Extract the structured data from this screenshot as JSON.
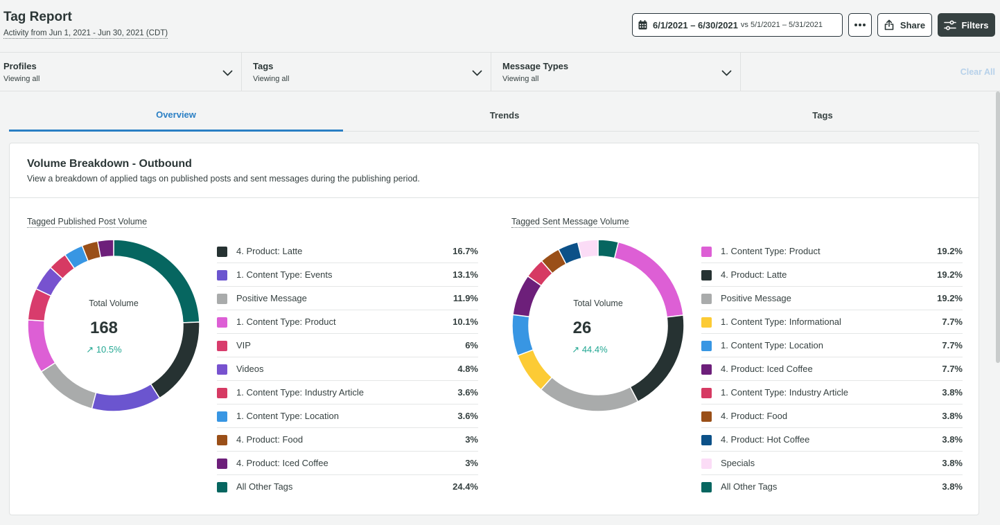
{
  "header": {
    "title": "Tag Report",
    "subtitle": "Activity from Jun 1, 2021 - Jun 30, 2021 (CDT)",
    "date_range": "6/1/2021 – 6/30/2021",
    "compare_range": "vs 5/1/2021 – 5/31/2021",
    "share_label": "Share",
    "filters_label": "Filters"
  },
  "filters": [
    {
      "label": "Profiles",
      "value": "Viewing all"
    },
    {
      "label": "Tags",
      "value": "Viewing all"
    },
    {
      "label": "Message Types",
      "value": "Viewing all"
    }
  ],
  "clear_all": "Clear All",
  "tabs": [
    {
      "label": "Overview",
      "active": true
    },
    {
      "label": "Trends",
      "active": false
    },
    {
      "label": "Tags",
      "active": false
    }
  ],
  "card": {
    "title": "Volume Breakdown - Outbound",
    "description": "View a breakdown of applied tags on published posts and sent messages during the publishing period."
  },
  "chart_data": [
    {
      "type": "pie",
      "title": "Tagged Published Post Volume",
      "center_label": "Total Volume",
      "total": "168",
      "change": "10.5%",
      "slices": [
        {
          "label": "4. Product: Latte",
          "value": 16.7,
          "display": "16.7%",
          "color": "#263232"
        },
        {
          "label": "1. Content Type: Events",
          "value": 13.1,
          "display": "13.1%",
          "color": "#6b55cf"
        },
        {
          "label": "Positive Message",
          "value": 11.9,
          "display": "11.9%",
          "color": "#a9abab"
        },
        {
          "label": "1. Content Type: Product",
          "value": 10.1,
          "display": "10.1%",
          "color": "#dd5fd5"
        },
        {
          "label": "VIP",
          "value": 6,
          "display": "6%",
          "color": "#d83c6c"
        },
        {
          "label": "Videos",
          "value": 4.8,
          "display": "4.8%",
          "color": "#7752cf"
        },
        {
          "label": "1. Content Type: Industry Article",
          "value": 3.6,
          "display": "3.6%",
          "color": "#d63a63"
        },
        {
          "label": "1. Content Type: Location",
          "value": 3.6,
          "display": "3.6%",
          "color": "#3896e3"
        },
        {
          "label": "4. Product: Food",
          "value": 3,
          "display": "3%",
          "color": "#9a4f18"
        },
        {
          "label": "4. Product: Iced Coffee",
          "value": 3,
          "display": "3%",
          "color": "#6d1f7a"
        },
        {
          "label": "All Other Tags",
          "value": 24.4,
          "display": "24.4%",
          "color": "#066660"
        }
      ]
    },
    {
      "type": "pie",
      "title": "Tagged Sent Message Volume",
      "center_label": "Total Volume",
      "total": "26",
      "change": "44.4%",
      "slices": [
        {
          "label": "1. Content Type: Product",
          "value": 19.2,
          "display": "19.2%",
          "color": "#dd5fd5"
        },
        {
          "label": "4. Product: Latte",
          "value": 19.2,
          "display": "19.2%",
          "color": "#263232"
        },
        {
          "label": "Positive Message",
          "value": 19.2,
          "display": "19.2%",
          "color": "#a9abab"
        },
        {
          "label": "1. Content Type: Informational",
          "value": 7.7,
          "display": "7.7%",
          "color": "#fccb35"
        },
        {
          "label": "1. Content Type: Location",
          "value": 7.7,
          "display": "7.7%",
          "color": "#3896e3"
        },
        {
          "label": "4. Product: Iced Coffee",
          "value": 7.7,
          "display": "7.7%",
          "color": "#6d1f7a"
        },
        {
          "label": "1. Content Type: Industry Article",
          "value": 3.8,
          "display": "3.8%",
          "color": "#d63a63"
        },
        {
          "label": "4. Product: Food",
          "value": 3.8,
          "display": "3.8%",
          "color": "#9a4f18"
        },
        {
          "label": "4. Product: Hot Coffee",
          "value": 3.8,
          "display": "3.8%",
          "color": "#0c5188"
        },
        {
          "label": "Specials",
          "value": 3.8,
          "display": "3.8%",
          "color": "#fbdcf6"
        },
        {
          "label": "All Other Tags",
          "value": 3.8,
          "display": "3.8%",
          "color": "#066660"
        }
      ]
    }
  ]
}
